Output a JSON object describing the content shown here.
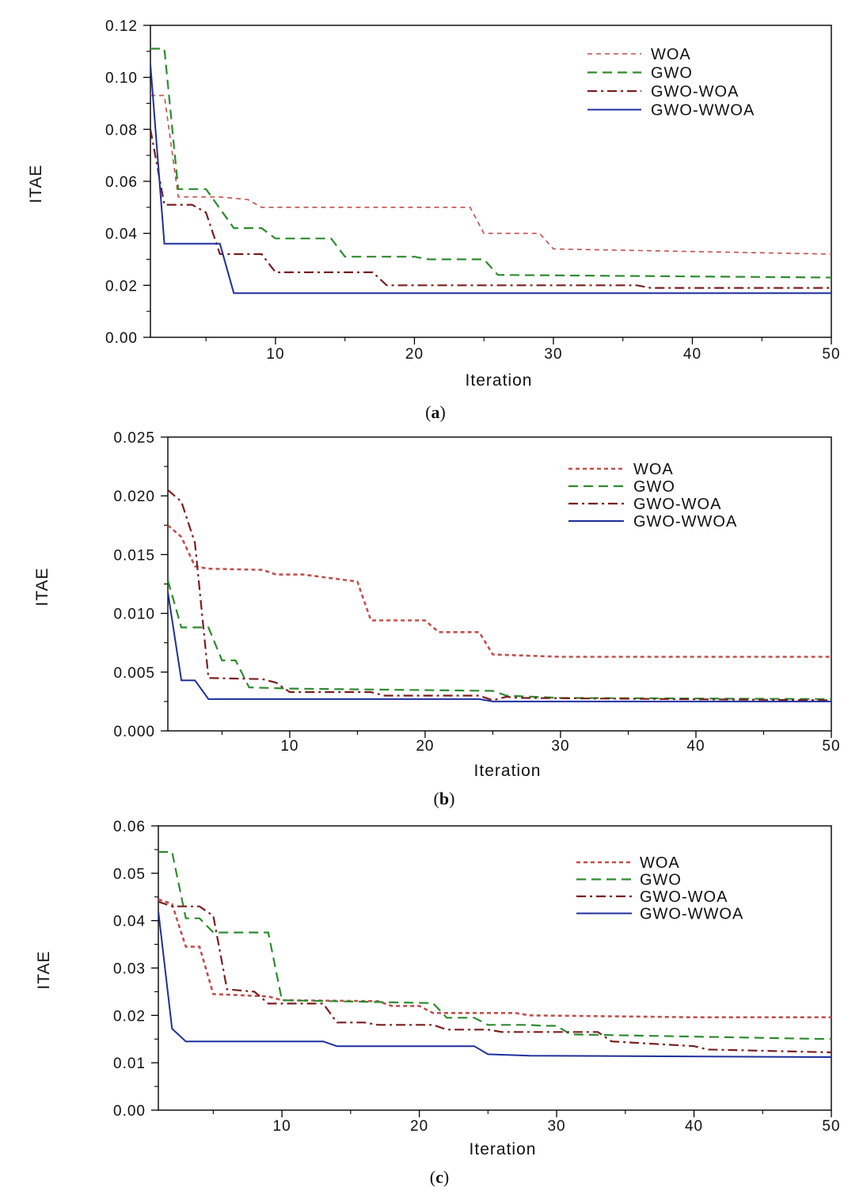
{
  "chart_data": [
    {
      "type": "line",
      "caption": "a",
      "xlabel": "Iteration",
      "ylabel": "ITAE",
      "xlim": [
        1,
        50
      ],
      "ylim": [
        0,
        0.12
      ],
      "xticks": [
        10,
        20,
        30,
        40,
        50
      ],
      "xtick_labels": [
        "10",
        "20",
        "30",
        "40",
        "50"
      ],
      "yticks": [
        0,
        0.02,
        0.04,
        0.06,
        0.08,
        0.1,
        0.12
      ],
      "ytick_labels": [
        "0.00",
        "0.02",
        "0.04",
        "0.06",
        "0.08",
        "0.10",
        "0.12"
      ],
      "legend_position": "top-right",
      "series": [
        {
          "name": "WOA",
          "color": "#c0504d",
          "style": "dashed-fine",
          "x": [
            1,
            2,
            3,
            6,
            8,
            9,
            24,
            25,
            28,
            29,
            30,
            50
          ],
          "y": [
            0.093,
            0.093,
            0.054,
            0.054,
            0.053,
            0.05,
            0.05,
            0.04,
            0.04,
            0.04,
            0.034,
            0.032
          ]
        },
        {
          "name": "GWO",
          "color": "#2e8b2e",
          "style": "dashed",
          "x": [
            1,
            2,
            3,
            5,
            7,
            9,
            10,
            14,
            15,
            20,
            21,
            25,
            26,
            50
          ],
          "y": [
            0.111,
            0.111,
            0.057,
            0.057,
            0.042,
            0.042,
            0.038,
            0.038,
            0.031,
            0.031,
            0.03,
            0.03,
            0.024,
            0.023
          ]
        },
        {
          "name": "GWO-WOA",
          "color": "#7a1f1f",
          "style": "dashdot",
          "x": [
            1,
            2,
            4,
            5,
            6,
            9,
            10,
            17,
            18,
            36,
            37,
            50
          ],
          "y": [
            0.08,
            0.051,
            0.051,
            0.048,
            0.032,
            0.032,
            0.025,
            0.025,
            0.02,
            0.02,
            0.019,
            0.019
          ]
        },
        {
          "name": "GWO-WWOA",
          "color": "#1f2f9c",
          "style": "solid",
          "x": [
            1,
            2,
            6,
            7,
            50
          ],
          "y": [
            0.105,
            0.036,
            0.036,
            0.017,
            0.017
          ]
        }
      ]
    },
    {
      "type": "line",
      "caption": "b",
      "xlabel": "Iteration",
      "ylabel": "ITAE",
      "xlim": [
        1,
        50
      ],
      "ylim": [
        0,
        0.025
      ],
      "xticks": [
        10,
        20,
        30,
        40,
        50
      ],
      "xtick_labels": [
        "10",
        "20",
        "30",
        "40",
        "50"
      ],
      "yticks": [
        0,
        0.005,
        0.01,
        0.015,
        0.02,
        0.025
      ],
      "ytick_labels": [
        "0.000",
        "0.005",
        "0.010",
        "0.015",
        "0.020",
        "0.025"
      ],
      "legend_position": "top-right",
      "series": [
        {
          "name": "WOA",
          "color": "#c0504d",
          "style": "dotted",
          "x": [
            1,
            2,
            3,
            4,
            8,
            9,
            11,
            15,
            16,
            20,
            21,
            24,
            25,
            30,
            50
          ],
          "y": [
            0.0175,
            0.0165,
            0.014,
            0.0138,
            0.0137,
            0.0133,
            0.0133,
            0.0127,
            0.0094,
            0.0094,
            0.0084,
            0.0084,
            0.0065,
            0.0063,
            0.0063
          ]
        },
        {
          "name": "GWO",
          "color": "#2e8b2e",
          "style": "dashed",
          "x": [
            1,
            2,
            4,
            5,
            6,
            7,
            10,
            25,
            26,
            30,
            50
          ],
          "y": [
            0.0128,
            0.0088,
            0.0088,
            0.006,
            0.006,
            0.0037,
            0.0036,
            0.0034,
            0.003,
            0.0028,
            0.0027
          ]
        },
        {
          "name": "GWO-WOA",
          "color": "#7a1f1f",
          "style": "dashdot",
          "x": [
            1,
            2,
            3,
            4,
            8,
            9,
            10,
            16,
            17,
            24,
            25,
            26,
            27,
            50
          ],
          "y": [
            0.0205,
            0.0195,
            0.016,
            0.0045,
            0.0044,
            0.0041,
            0.0033,
            0.0033,
            0.003,
            0.003,
            0.0026,
            0.0029,
            0.0028,
            0.0026
          ]
        },
        {
          "name": "GWO-WWOA",
          "color": "#1f2f9c",
          "style": "solid",
          "x": [
            1,
            2,
            3,
            4,
            24,
            25,
            50
          ],
          "y": [
            0.0118,
            0.0043,
            0.0043,
            0.0027,
            0.0027,
            0.0025,
            0.0025
          ]
        }
      ]
    },
    {
      "type": "line",
      "caption": "c",
      "xlabel": "Iteration",
      "ylabel": "ITAE",
      "xlim": [
        1,
        50
      ],
      "ylim": [
        0,
        0.06
      ],
      "xticks": [
        10,
        20,
        30,
        40,
        50
      ],
      "xtick_labels": [
        "10",
        "20",
        "30",
        "40",
        "50"
      ],
      "yticks": [
        0,
        0.01,
        0.02,
        0.03,
        0.04,
        0.05,
        0.06
      ],
      "ytick_labels": [
        "0.00",
        "0.01",
        "0.02",
        "0.03",
        "0.04",
        "0.05",
        "0.06"
      ],
      "legend_position": "top-right",
      "series": [
        {
          "name": "WOA",
          "color": "#c0504d",
          "style": "dotted",
          "x": [
            1,
            2,
            3,
            4,
            5,
            9,
            10,
            17,
            18,
            20,
            21,
            27,
            28,
            40,
            50
          ],
          "y": [
            0.0445,
            0.0435,
            0.0345,
            0.0345,
            0.0245,
            0.024,
            0.0232,
            0.023,
            0.022,
            0.022,
            0.0205,
            0.0205,
            0.02,
            0.0196,
            0.0196
          ]
        },
        {
          "name": "GWO",
          "color": "#2e8b2e",
          "style": "dashed",
          "x": [
            1,
            2,
            3,
            4,
            5,
            9,
            10,
            21,
            22,
            24,
            25,
            28,
            29,
            30,
            31,
            50
          ],
          "y": [
            0.0545,
            0.0545,
            0.0405,
            0.0405,
            0.0375,
            0.0375,
            0.0232,
            0.0226,
            0.0195,
            0.0195,
            0.018,
            0.018,
            0.0178,
            0.0178,
            0.016,
            0.015
          ]
        },
        {
          "name": "GWO-WOA",
          "color": "#7a1f1f",
          "style": "dashdot",
          "x": [
            1,
            2,
            4,
            5,
            6,
            8,
            9,
            13,
            14,
            16,
            17,
            21,
            22,
            25,
            26,
            33,
            34,
            40,
            41,
            50
          ],
          "y": [
            0.044,
            0.043,
            0.043,
            0.041,
            0.0255,
            0.025,
            0.0225,
            0.0225,
            0.0185,
            0.0185,
            0.018,
            0.018,
            0.017,
            0.017,
            0.0165,
            0.0165,
            0.0145,
            0.0135,
            0.0128,
            0.0122
          ]
        },
        {
          "name": "GWO-WWOA",
          "color": "#1f2f9c",
          "style": "solid",
          "x": [
            1,
            2,
            3,
            13,
            14,
            24,
            25,
            28,
            50
          ],
          "y": [
            0.042,
            0.0172,
            0.0145,
            0.0145,
            0.0135,
            0.0135,
            0.0118,
            0.0115,
            0.0112
          ]
        }
      ]
    }
  ]
}
